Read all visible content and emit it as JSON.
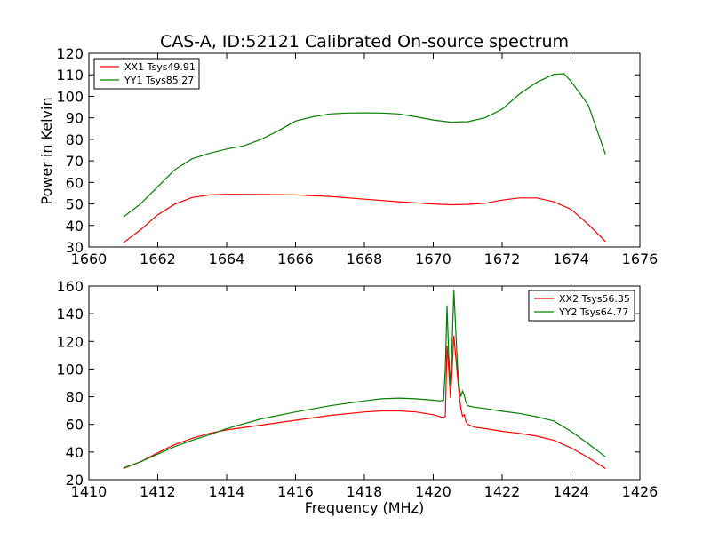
{
  "chart_data": [
    {
      "type": "line",
      "title": "CAS-A, ID:52121 Calibrated On-source spectrum",
      "xlabel": "",
      "ylabel": "Power in Kelvin",
      "xlim": [
        1660,
        1676
      ],
      "ylim": [
        30,
        120
      ],
      "xticks": [
        "1660",
        "1662",
        "1664",
        "1666",
        "1668",
        "1670",
        "1672",
        "1674",
        "1676"
      ],
      "yticks": [
        "30",
        "40",
        "50",
        "60",
        "70",
        "80",
        "90",
        "100",
        "110",
        "120"
      ],
      "legend_position": "top-left",
      "series": [
        {
          "name": "XX1 Tsys49.91",
          "color": "#ff0000",
          "x": [
            1661.0,
            1661.5,
            1662.0,
            1662.5,
            1663.0,
            1663.5,
            1664.0,
            1665.0,
            1666.0,
            1667.0,
            1668.0,
            1669.0,
            1670.0,
            1670.5,
            1671.0,
            1671.5,
            1672.0,
            1672.5,
            1673.0,
            1673.5,
            1674.0,
            1674.5,
            1675.0
          ],
          "y": [
            32,
            38,
            45,
            50,
            53,
            54.2,
            54.5,
            54.4,
            54.2,
            53.5,
            52.2,
            51.0,
            50.0,
            49.6,
            49.8,
            50.3,
            51.8,
            52.8,
            52.8,
            51.0,
            47.5,
            40.5,
            32.5
          ]
        },
        {
          "name": "YY1 Tsys85.27",
          "color": "#008000",
          "x": [
            1661.0,
            1661.5,
            1662.0,
            1662.5,
            1663.0,
            1663.5,
            1664.0,
            1664.5,
            1665.0,
            1665.5,
            1666.0,
            1666.5,
            1667.0,
            1667.5,
            1668.0,
            1668.5,
            1669.0,
            1669.5,
            1670.0,
            1670.5,
            1671.0,
            1671.5,
            1672.0,
            1672.5,
            1673.0,
            1673.5,
            1673.8,
            1674.0,
            1674.5,
            1675.0
          ],
          "y": [
            44,
            50,
            58,
            66,
            71,
            73.5,
            75.5,
            77,
            80,
            84,
            88.5,
            90.5,
            91.8,
            92.2,
            92.3,
            92.2,
            91.8,
            90.5,
            89,
            88,
            88.2,
            90,
            94,
            101,
            106.5,
            110.2,
            110.5,
            107,
            96,
            73
          ]
        }
      ]
    },
    {
      "type": "line",
      "title": "",
      "xlabel": "Frequency (MHz)",
      "ylabel": "",
      "xlim": [
        1410,
        1426
      ],
      "ylim": [
        20,
        160
      ],
      "xticks": [
        "1410",
        "1412",
        "1414",
        "1416",
        "1418",
        "1420",
        "1422",
        "1424",
        "1426"
      ],
      "yticks": [
        "20",
        "40",
        "60",
        "80",
        "100",
        "120",
        "140",
        "160"
      ],
      "legend_position": "top-right",
      "series": [
        {
          "name": "XX2 Tsys56.35",
          "color": "#ff0000",
          "x": [
            1411.0,
            1411.5,
            1412.0,
            1412.5,
            1413.0,
            1413.5,
            1414.0,
            1415.0,
            1416.0,
            1417.0,
            1418.0,
            1418.5,
            1419.0,
            1419.5,
            1420.0,
            1420.2,
            1420.3,
            1420.35,
            1420.4,
            1420.45,
            1420.5,
            1420.55,
            1420.6,
            1420.65,
            1420.7,
            1420.75,
            1420.8,
            1420.85,
            1420.9,
            1420.95,
            1421.0,
            1421.2,
            1421.5,
            1422.0,
            1422.5,
            1423.0,
            1423.5,
            1424.0,
            1424.5,
            1425.0
          ],
          "y": [
            28,
            33,
            39.5,
            45.5,
            50,
            53.5,
            56,
            59.5,
            63,
            66.5,
            69,
            69.8,
            69.8,
            69,
            67,
            65.5,
            64.8,
            66,
            117,
            100,
            79,
            100,
            124,
            110,
            96,
            82,
            72,
            66,
            67,
            62,
            60,
            58,
            57,
            55,
            53.5,
            51.5,
            48.5,
            43,
            36,
            28
          ]
        },
        {
          "name": "YY2 Tsys64.77",
          "color": "#008000",
          "x": [
            1411.0,
            1411.5,
            1412.0,
            1412.5,
            1413.0,
            1413.5,
            1414.0,
            1415.0,
            1416.0,
            1417.0,
            1418.0,
            1418.5,
            1419.0,
            1419.5,
            1420.0,
            1420.2,
            1420.3,
            1420.35,
            1420.4,
            1420.45,
            1420.5,
            1420.55,
            1420.6,
            1420.65,
            1420.7,
            1420.75,
            1420.8,
            1420.85,
            1420.9,
            1420.95,
            1421.0,
            1421.2,
            1421.5,
            1422.0,
            1422.5,
            1423.0,
            1423.5,
            1424.0,
            1424.5,
            1425.0
          ],
          "y": [
            28.5,
            33,
            38.5,
            44,
            48.5,
            52.5,
            57,
            64,
            69,
            73.5,
            77,
            78.5,
            79,
            78.5,
            77.5,
            77,
            77.5,
            100,
            146,
            110,
            88,
            120,
            157,
            130,
            104,
            88,
            80,
            84,
            81,
            76,
            73.5,
            72.5,
            71.5,
            69.5,
            68,
            65.5,
            62.5,
            55,
            46,
            36.5
          ]
        }
      ]
    }
  ]
}
